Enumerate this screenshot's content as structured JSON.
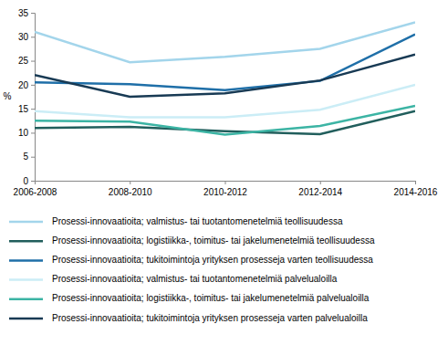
{
  "chart_data": {
    "type": "line",
    "y_label": "%",
    "categories": [
      "2006-2008",
      "2008-2010",
      "2010-2012",
      "2012-2014",
      "2014-2016"
    ],
    "ylim": [
      0,
      35
    ],
    "yticks": [
      0,
      5,
      10,
      15,
      20,
      25,
      30,
      35
    ],
    "grid": false,
    "legend": "bottom",
    "series": [
      {
        "name": "Prosessi-innovaatioita; valmistus- tai tuotantomenetelmiä teollisuudessa",
        "color": "#a3d5eb",
        "values": [
          31,
          24.7,
          25.8,
          27.5,
          33
        ]
      },
      {
        "name": "Prosessi-innovaatioita; logistiikka-, toimitus- tai jakelumenetelmiä teollisuudessa",
        "color": "#215e5c",
        "values": [
          11,
          11.2,
          10.3,
          9.7,
          14.5
        ]
      },
      {
        "name": "Prosessi-innovaatioita; tukitoimintoja yrityksen prosesseja varten teollisuudessa",
        "color": "#1f6fa8",
        "values": [
          20.5,
          20.1,
          18.9,
          20.8,
          30.5
        ]
      },
      {
        "name": "Prosessi-innovaatioita; valmistus- tai tuotantomenetelmiä palvelualoilla",
        "color": "#cbedf6",
        "values": [
          14.5,
          13.2,
          13.2,
          14.8,
          20
        ]
      },
      {
        "name": "Prosessi-innovaatioita; logistiikka-, toimitus- tai jakelumenetelmiä palvelualoilla",
        "color": "#3cb4a4",
        "values": [
          12.5,
          12.3,
          9.6,
          11.4,
          15.6
        ]
      },
      {
        "name": "Prosessi-innovaatioita; tukitoimintoja yrityksen prosesseja varten palvelualoilla",
        "color": "#183a54",
        "values": [
          22,
          17.5,
          18.2,
          20.9,
          26.3
        ]
      }
    ]
  }
}
